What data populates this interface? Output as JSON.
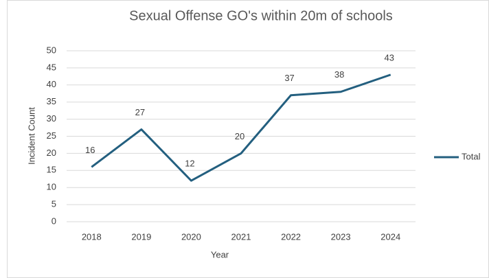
{
  "chart_data": {
    "type": "line",
    "title": "Sexual Offense GO's within 20m of schools",
    "x_label": "Year",
    "y_label": "Incident Count",
    "categories": [
      "2018",
      "2019",
      "2020",
      "2021",
      "2022",
      "2023",
      "2024"
    ],
    "series": [
      {
        "name": "Total",
        "color": "#235f7f",
        "values": [
          16,
          27,
          12,
          20,
          37,
          38,
          43
        ]
      }
    ],
    "ylim": [
      0,
      50
    ],
    "yticks": [
      0,
      5,
      10,
      15,
      20,
      25,
      30,
      35,
      40,
      45,
      50
    ],
    "grid": true,
    "legend": "right",
    "data_labels": true
  }
}
